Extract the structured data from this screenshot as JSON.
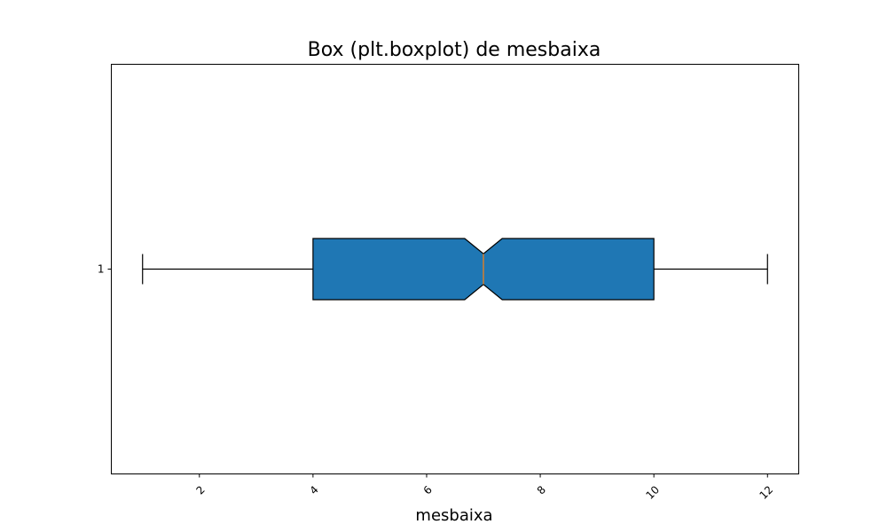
{
  "chart_data": {
    "type": "boxplot",
    "title": "Box (plt.boxplot) de mesbaixa",
    "xlabel": "mesbaixa",
    "ylabel": "",
    "orientation": "horizontal",
    "notch": true,
    "xlim": [
      0.45,
      12.55
    ],
    "xticks": [
      "2",
      "4",
      "6",
      "8",
      "10",
      "12"
    ],
    "yticks": [
      "1"
    ],
    "boxes": [
      {
        "label": "1",
        "whisker_low": 1,
        "q1": 4,
        "median": 7,
        "q3": 10,
        "whisker_high": 12,
        "notch_low": 6.67,
        "notch_high": 7.33
      }
    ],
    "colors": {
      "box_fill": "#1f77b4",
      "median_line": "#ff7f0e",
      "lines": "#000000"
    }
  }
}
